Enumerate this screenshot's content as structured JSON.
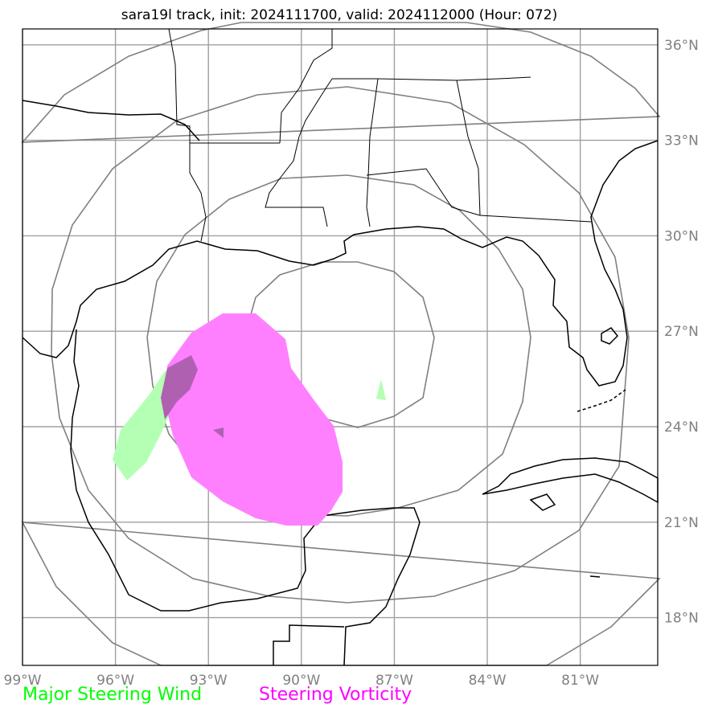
{
  "title": "sara19l track, init: 2024111700, valid: 2024112000 (Hour: 072)",
  "map": {
    "lon_range": [
      -99.0,
      -78.5
    ],
    "lat_range": [
      16.5,
      36.5
    ],
    "x_ticks": [
      {
        "lon": -99,
        "label": "99°W"
      },
      {
        "lon": -96,
        "label": "96°W"
      },
      {
        "lon": -93,
        "label": "93°W"
      },
      {
        "lon": -90,
        "label": "90°W"
      },
      {
        "lon": -87,
        "label": "87°W"
      },
      {
        "lon": -84,
        "label": "84°W"
      },
      {
        "lon": -81,
        "label": "81°W"
      }
    ],
    "y_ticks": [
      {
        "lat": 36,
        "label": "36°N"
      },
      {
        "lat": 33,
        "label": "33°N"
      },
      {
        "lat": 30,
        "label": "30°N"
      },
      {
        "lat": 27,
        "label": "27°N"
      },
      {
        "lat": 24,
        "label": "24°N"
      },
      {
        "lat": 21,
        "label": "21°N"
      },
      {
        "lat": 18,
        "label": "18°N"
      }
    ],
    "range_rings_center": {
      "lon": -87.0,
      "lat": 25.7
    },
    "grid": true,
    "colors": {
      "grid": "#a0a0a0",
      "rings": "#808080",
      "coast": "#000000",
      "steering_wind": "#b3ffb3",
      "steering_vorticity": "#ff80ff",
      "overlap": "#b060b0"
    }
  },
  "legend": {
    "major_steering_wind": {
      "label": "Major Steering Wind",
      "color": "#00ff00"
    },
    "steering_vorticity": {
      "label": "Steering Vorticity",
      "color": "#ff00ff"
    }
  }
}
